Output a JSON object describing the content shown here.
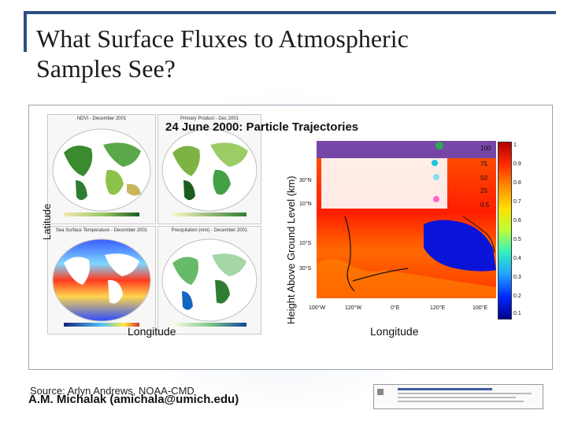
{
  "slide": {
    "title_line1": "What Surface Fluxes to Atmospheric",
    "title_line2": "Samples See?"
  },
  "overlay": {
    "title": "24 June 2000:  Particle Trajectories",
    "y_label_left": "Latitude",
    "y_label_right": "Height Above Ground Level (km)",
    "x_label_left": "Longitude",
    "x_label_right": "Longitude"
  },
  "maps": {
    "ndvi_title": "NDVI - December 2001",
    "sst_title": "Sea Surface Temperature - December 2001",
    "precip_title": "Precipitation (mm) - December 2001",
    "primary_title": "Primary Product - Dec 2001"
  },
  "right_plot": {
    "lat_ticks": [
      "30°N",
      "10°N",
      "10°S",
      "30°S"
    ],
    "lon_ticks": [
      "100°W",
      "120°W",
      "0°E",
      "120°E",
      "100°E"
    ],
    "cbar_ticks": [
      "1",
      "0.9",
      "0.8",
      "0.7",
      "0.6",
      "0.5",
      "0.4",
      "0.3",
      "0.2",
      "0.1"
    ],
    "height_marks": [
      "100",
      "75",
      "50",
      "25",
      "0.5"
    ],
    "colors": {
      "high": "#b40000",
      "low": "#0028ff"
    }
  },
  "footer": {
    "source": "Source: Arlyn Andrews, NOAA-CMD",
    "credit": "A.M. Michalak (amichala@umich.edu)"
  }
}
